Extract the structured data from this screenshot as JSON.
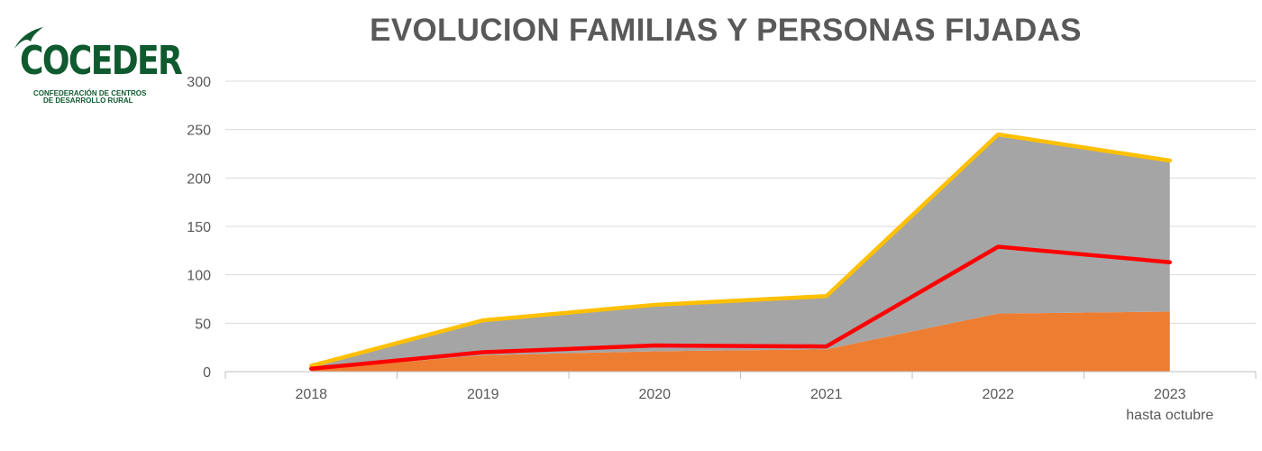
{
  "logo": {
    "name": "COCEDER",
    "subtitle_line1": "CONFEDERACIÓN DE CENTROS",
    "subtitle_line2": "DE DESARROLLO RURAL",
    "color": "#0f5a2f"
  },
  "chart_data": {
    "type": "area",
    "title": "EVOLUCION FAMILIAS Y PERSONAS FIJADAS",
    "xlabel": "",
    "ylabel": "",
    "categories": [
      "2018",
      "2019",
      "2020",
      "2021",
      "2022",
      "2023"
    ],
    "category_sublabels": [
      "",
      "",
      "",
      "",
      "",
      "hasta octubre"
    ],
    "ylim": [
      0,
      300
    ],
    "yticks": [
      0,
      50,
      100,
      150,
      200,
      250,
      300
    ],
    "grid": true,
    "legend": "none",
    "stacked_areas": [
      {
        "color": "#ed7d31",
        "values": [
          2,
          17,
          21,
          23,
          60,
          62
        ]
      },
      {
        "color": "#a5a5a5",
        "values": [
          3,
          34,
          47,
          54,
          183,
          155
        ]
      }
    ],
    "lines": [
      {
        "color": "#ffc000",
        "values": [
          6,
          53,
          69,
          78,
          245,
          218
        ]
      },
      {
        "color": "#ff0000",
        "values": [
          3,
          20,
          27,
          26,
          129,
          113
        ]
      }
    ]
  }
}
